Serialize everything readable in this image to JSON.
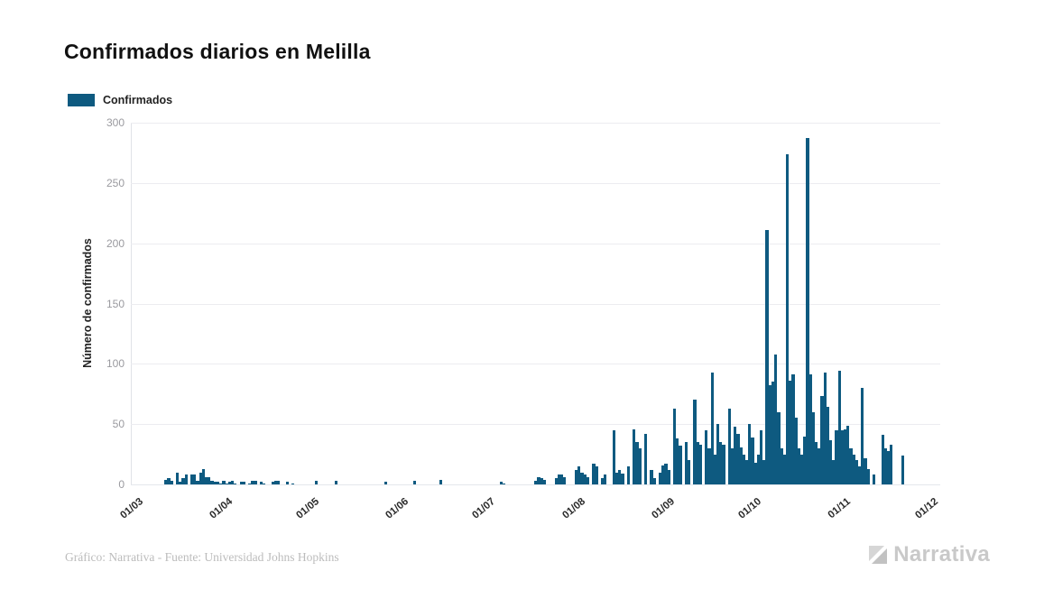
{
  "title": "Confirmados diarios en Melilla",
  "legend": {
    "label": "Confirmados",
    "color": "#0e5a80"
  },
  "y_axis": {
    "title": "Número de confirmados",
    "ticks": [
      0,
      50,
      100,
      150,
      200,
      250,
      300
    ]
  },
  "x_axis": {
    "ticks": [
      "01/03",
      "01/04",
      "01/05",
      "01/06",
      "01/07",
      "01/08",
      "01/09",
      "01/10",
      "01/11",
      "01/12"
    ]
  },
  "footer": {
    "credit": "Gráfico: Narrativa - Fuente: Universidad Johns Hopkins",
    "brand": "Narrativa"
  },
  "chart_data": {
    "type": "bar",
    "title": "Confirmados diarios en Melilla",
    "series_name": "Confirmados",
    "color": "#0e5a80",
    "xlabel": "",
    "ylabel": "Número de confirmados",
    "ylim": [
      0,
      300
    ],
    "y_tick_interval": 50,
    "grid": "horizontal",
    "legend_position": "top-left",
    "x_unit": "day",
    "date_format": "DD/MM",
    "x_start": "01/03",
    "x_tick_labels": [
      "01/03",
      "01/04",
      "01/05",
      "01/06",
      "01/07",
      "01/08",
      "01/09",
      "01/10",
      "01/11",
      "01/12"
    ],
    "tick_day_offsets": [
      0,
      31,
      61,
      92,
      122,
      153,
      184,
      214,
      245,
      275
    ],
    "values": [
      0,
      0,
      0,
      0,
      0,
      0,
      0,
      0,
      0,
      0,
      0,
      4,
      5,
      3,
      0,
      10,
      2,
      5,
      8,
      0,
      8,
      8,
      3,
      10,
      13,
      6,
      6,
      3,
      2,
      2,
      1,
      3,
      1,
      2,
      3,
      1,
      0,
      2,
      2,
      0,
      1,
      3,
      3,
      0,
      2,
      1,
      0,
      0,
      2,
      3,
      3,
      0,
      0,
      2,
      0,
      1,
      0,
      0,
      0,
      0,
      0,
      0,
      0,
      3,
      0,
      0,
      0,
      0,
      0,
      0,
      3,
      0,
      0,
      0,
      0,
      0,
      0,
      0,
      0,
      0,
      0,
      0,
      0,
      0,
      0,
      0,
      0,
      2,
      0,
      0,
      0,
      0,
      0,
      0,
      0,
      0,
      0,
      3,
      0,
      0,
      0,
      0,
      0,
      0,
      0,
      0,
      4,
      0,
      0,
      0,
      0,
      0,
      0,
      0,
      0,
      0,
      0,
      0,
      0,
      0,
      0,
      0,
      0,
      0,
      0,
      0,
      0,
      2,
      1,
      0,
      0,
      0,
      0,
      0,
      0,
      0,
      0,
      0,
      0,
      3,
      6,
      5,
      4,
      0,
      0,
      0,
      5,
      8,
      8,
      6,
      0,
      0,
      0,
      12,
      15,
      10,
      8,
      6,
      0,
      17,
      15,
      0,
      5,
      8,
      0,
      0,
      45,
      10,
      12,
      9,
      0,
      15,
      0,
      46,
      35,
      30,
      0,
      42,
      0,
      12,
      5,
      0,
      10,
      16,
      17,
      12,
      0,
      63,
      38,
      32,
      0,
      35,
      20,
      0,
      70,
      35,
      33,
      0,
      45,
      30,
      93,
      25,
      50,
      35,
      33,
      0,
      63,
      30,
      48,
      42,
      31,
      25,
      20,
      50,
      39,
      18,
      25,
      45,
      20,
      211,
      82,
      85,
      108,
      60,
      30,
      25,
      274,
      86,
      91,
      55,
      30,
      25,
      40,
      287,
      91,
      60,
      35,
      30,
      73,
      93,
      64,
      37,
      20,
      45,
      94,
      45,
      46,
      49,
      30,
      25,
      20,
      15,
      80,
      22,
      13,
      0,
      8,
      0,
      0,
      41,
      30,
      28,
      33,
      0,
      0,
      0,
      24,
      0,
      0,
      0,
      0,
      0,
      0,
      0,
      0,
      0,
      0,
      0,
      0,
      0
    ]
  }
}
